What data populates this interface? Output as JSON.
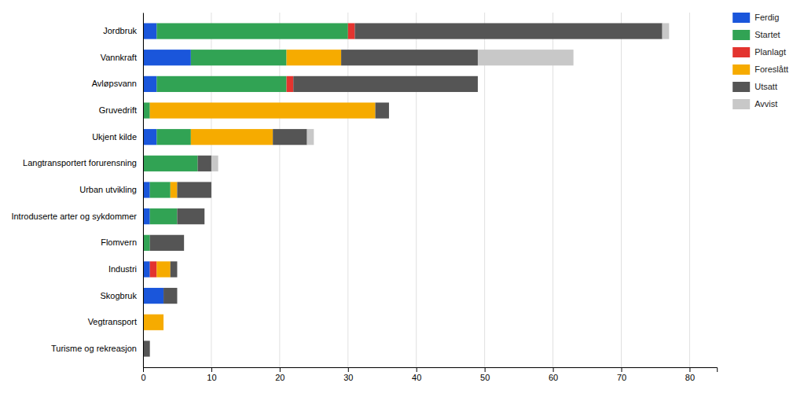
{
  "chart_data": {
    "type": "bar",
    "orientation": "horizontal",
    "stacked": true,
    "categories": [
      "Jordbruk",
      "Vannkraft",
      "Avløpsvann",
      "Gruvedrift",
      "Ukjent kilde",
      "Langtransportert forurensning",
      "Urban utvikling",
      "Introduserte arter og sykdommer",
      "Flomvern",
      "Industri",
      "Skogbruk",
      "Vegtransport",
      "Turisme og rekreasjon"
    ],
    "series": [
      {
        "name": "Ferdig",
        "color": "#1a56db",
        "values": [
          2,
          7,
          2,
          0,
          2,
          0,
          1,
          1,
          0,
          1,
          3,
          0,
          0
        ]
      },
      {
        "name": "Startet",
        "color": "#31a354",
        "values": [
          28,
          14,
          19,
          1,
          5,
          8,
          3,
          4,
          1,
          0,
          0,
          0,
          0
        ]
      },
      {
        "name": "Planlagt",
        "color": "#e3342f",
        "values": [
          1,
          0,
          1,
          0,
          0,
          0,
          0,
          0,
          0,
          1,
          0,
          0,
          0
        ]
      },
      {
        "name": "Foreslått",
        "color": "#f6ab00",
        "values": [
          0,
          8,
          0,
          33,
          12,
          0,
          1,
          0,
          0,
          2,
          0,
          3,
          0
        ]
      },
      {
        "name": "Utsatt",
        "color": "#555555",
        "values": [
          45,
          20,
          27,
          2,
          5,
          2,
          5,
          4,
          5,
          1,
          2,
          0,
          1
        ]
      },
      {
        "name": "Avvist",
        "color": "#c8c8c8",
        "values": [
          1,
          14,
          0,
          0,
          1,
          1,
          0,
          0,
          0,
          0,
          0,
          0,
          0
        ]
      }
    ],
    "xlim": [
      0,
      84
    ],
    "xticks": [
      0,
      10,
      20,
      30,
      40,
      50,
      60,
      70,
      80
    ],
    "grid": true,
    "legend": "right"
  }
}
